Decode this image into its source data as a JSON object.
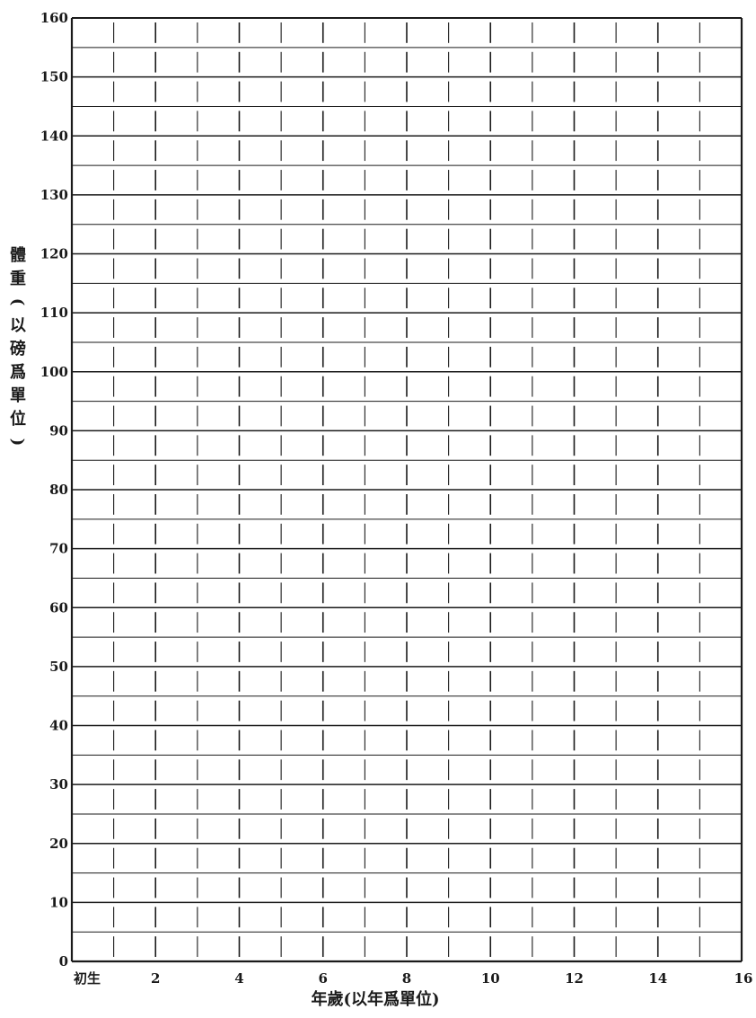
{
  "chart_data": {
    "type": "line",
    "title": "",
    "xlabel": "年歲(以年爲單位)",
    "ylabel": "體重(以磅爲單位)",
    "xlim": [
      0,
      16
    ],
    "ylim": [
      0,
      160
    ],
    "x_ticks": [
      {
        "value": 0,
        "label": "初生"
      },
      {
        "value": 2,
        "label": "2"
      },
      {
        "value": 4,
        "label": "4"
      },
      {
        "value": 6,
        "label": "6"
      },
      {
        "value": 8,
        "label": "8"
      },
      {
        "value": 10,
        "label": "10"
      },
      {
        "value": 12,
        "label": "12"
      },
      {
        "value": 14,
        "label": "14"
      },
      {
        "value": 16,
        "label": "16"
      }
    ],
    "y_ticks": [
      {
        "value": 0,
        "label": "0"
      },
      {
        "value": 10,
        "label": "10"
      },
      {
        "value": 20,
        "label": "20"
      },
      {
        "value": 30,
        "label": "30"
      },
      {
        "value": 40,
        "label": "40"
      },
      {
        "value": 50,
        "label": "50"
      },
      {
        "value": 60,
        "label": "60"
      },
      {
        "value": 70,
        "label": "70"
      },
      {
        "value": 80,
        "label": "80"
      },
      {
        "value": 90,
        "label": "90"
      },
      {
        "value": 100,
        "label": "100"
      },
      {
        "value": 110,
        "label": "110"
      },
      {
        "value": 120,
        "label": "120"
      },
      {
        "value": 130,
        "label": "130"
      },
      {
        "value": 140,
        "label": "140"
      },
      {
        "value": 150,
        "label": "150"
      },
      {
        "value": 160,
        "label": "160"
      }
    ],
    "grid": true,
    "grid_minor_y": 5,
    "grid_minor_x": 1,
    "series": []
  },
  "colors": {
    "ink": "#1a1a1a",
    "paper": "#ffffff"
  }
}
